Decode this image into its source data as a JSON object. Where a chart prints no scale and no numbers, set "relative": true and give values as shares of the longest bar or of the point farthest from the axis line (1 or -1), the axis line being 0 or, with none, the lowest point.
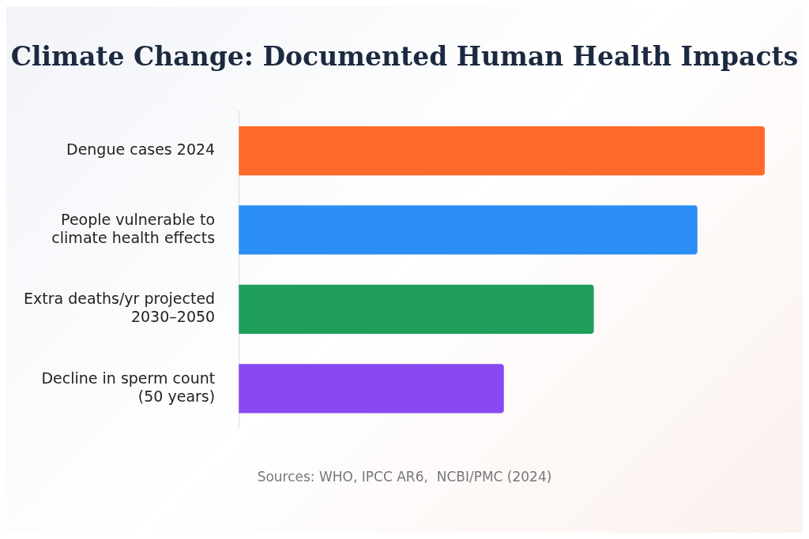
{
  "chart_data": {
    "type": "bar",
    "orientation": "horizontal",
    "relative": true,
    "title": "Climate Change: Documented Human Health Impacts",
    "categories": [
      "Dengue cases 2024",
      "People vulnerable to climate health effects",
      "Extra deaths/yr projected 2030–2050",
      "Decline in sperm count (50 years)"
    ],
    "values": [
      1,
      0.872,
      0.675,
      0.504
    ],
    "colors": [
      "#ff6a2a",
      "#2a8ef5",
      "#1e9e5a",
      "#8a48f2"
    ],
    "legend": false,
    "annotations": [
      "Sources: WHO, IPCC AR6,  NCBI/PMC (2024)"
    ]
  }
}
